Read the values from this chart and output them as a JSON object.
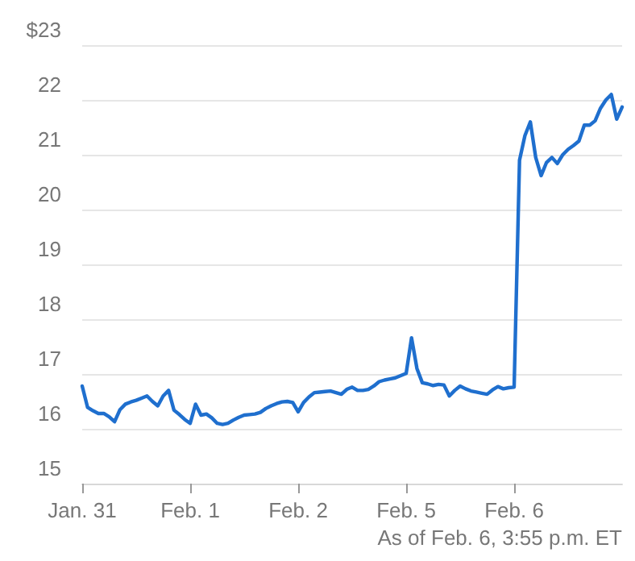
{
  "chart_data": {
    "type": "line",
    "categories": [
      "Jan. 31",
      null,
      null,
      null,
      null,
      null,
      null,
      null,
      null,
      null,
      null,
      null,
      null,
      null,
      null,
      null,
      null,
      null,
      null,
      null,
      "Feb. 1",
      null,
      null,
      null,
      null,
      null,
      null,
      null,
      null,
      null,
      null,
      null,
      null,
      null,
      null,
      null,
      null,
      null,
      null,
      null,
      "Feb. 2",
      null,
      null,
      null,
      null,
      null,
      null,
      null,
      null,
      null,
      null,
      null,
      null,
      null,
      null,
      null,
      null,
      null,
      null,
      null,
      "Feb. 5",
      null,
      null,
      null,
      null,
      null,
      null,
      null,
      null,
      null,
      null,
      null,
      null,
      null,
      null,
      null,
      null,
      null,
      null,
      null,
      "Feb. 6",
      null,
      null,
      null,
      null,
      null,
      null,
      null,
      null,
      null,
      null,
      null,
      null,
      null,
      null,
      null,
      null,
      null,
      null,
      null,
      null
    ],
    "series": [
      {
        "color": "#1f6fce",
        "values": [
          16.78,
          16.39,
          16.33,
          16.28,
          16.28,
          16.22,
          16.13,
          16.35,
          16.45,
          16.49,
          16.52,
          16.56,
          16.6,
          16.5,
          16.42,
          16.6,
          16.7,
          16.34,
          16.26,
          16.17,
          16.1,
          16.45,
          16.25,
          16.27,
          16.2,
          16.1,
          16.08,
          16.1,
          16.16,
          16.21,
          16.25,
          16.26,
          16.27,
          16.3,
          16.37,
          16.42,
          16.46,
          16.49,
          16.5,
          16.48,
          16.31,
          16.48,
          16.58,
          16.66,
          16.67,
          16.68,
          16.69,
          16.66,
          16.63,
          16.72,
          16.76,
          16.7,
          16.7,
          16.72,
          16.78,
          16.86,
          16.89,
          16.91,
          16.93,
          16.97,
          17.01,
          17.66,
          17.1,
          16.84,
          16.82,
          16.79,
          16.81,
          16.8,
          16.6,
          16.7,
          16.78,
          16.73,
          16.69,
          16.67,
          16.65,
          16.63,
          16.71,
          16.77,
          16.73,
          16.75,
          16.76,
          20.9,
          21.35,
          21.6,
          20.95,
          20.62,
          20.86,
          20.95,
          20.84,
          21.0,
          21.1,
          21.17,
          21.25,
          21.54,
          21.54,
          21.62,
          21.85,
          22.0,
          22.1,
          21.65,
          21.87
        ]
      }
    ],
    "ylim": [
      15,
      23
    ],
    "yticks": [
      15,
      16,
      17,
      18,
      19,
      20,
      21,
      22,
      {
        "value": 23,
        "label": "$23"
      }
    ],
    "grid": "y",
    "marker": "none",
    "line_style": "solid",
    "annotations": [
      "As of Feb. 6, 3:55 p.m. ET"
    ]
  }
}
